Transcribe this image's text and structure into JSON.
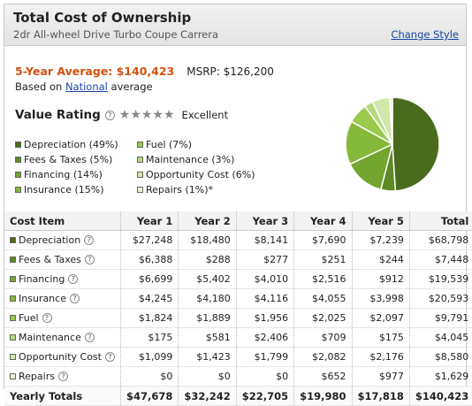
{
  "header": {
    "title": "Total Cost of Ownership",
    "subtitle": "2dr All-wheel Drive Turbo Coupe Carrera",
    "change_style": "Change Style"
  },
  "summary": {
    "avg_label": "5-Year Average: $140,423",
    "msrp": "MSRP: $126,200",
    "based_pre": "Based on",
    "based_link": "National",
    "based_post": "average"
  },
  "value_rating": {
    "label": "Value Rating",
    "help": "?",
    "stars": "★★★★★",
    "text": "Excellent"
  },
  "legend": [
    {
      "label": "Depreciation (49%)",
      "color": "#4a6a1e"
    },
    {
      "label": "Fees & Taxes (5%)",
      "color": "#5e8a26"
    },
    {
      "label": "Financing (14%)",
      "color": "#72a52e"
    },
    {
      "label": "Insurance (15%)",
      "color": "#86b83a"
    },
    {
      "label": "Fuel (7%)",
      "color": "#9acb4e"
    },
    {
      "label": "Maintenance (3%)",
      "color": "#b4da7c"
    },
    {
      "label": "Opportunity Cost (6%)",
      "color": "#cfe7a9"
    },
    {
      "label": "Repairs (1%)*",
      "color": "#e6f2d3"
    }
  ],
  "table": {
    "headers": [
      "Cost Item",
      "Year 1",
      "Year 2",
      "Year 3",
      "Year 4",
      "Year 5",
      "Total"
    ],
    "rows": [
      {
        "label": "Depreciation",
        "color": "#4a6a1e",
        "values": [
          "$27,248",
          "$18,480",
          "$8,141",
          "$7,690",
          "$7,239",
          "$68,798"
        ]
      },
      {
        "label": "Fees & Taxes",
        "color": "#5e8a26",
        "values": [
          "$6,388",
          "$288",
          "$277",
          "$251",
          "$244",
          "$7,448"
        ]
      },
      {
        "label": "Financing",
        "color": "#72a52e",
        "values": [
          "$6,699",
          "$5,402",
          "$4,010",
          "$2,516",
          "$912",
          "$19,539"
        ]
      },
      {
        "label": "Insurance",
        "color": "#86b83a",
        "values": [
          "$4,245",
          "$4,180",
          "$4,116",
          "$4,055",
          "$3,998",
          "$20,593"
        ]
      },
      {
        "label": "Fuel",
        "color": "#9acb4e",
        "values": [
          "$1,824",
          "$1,889",
          "$1,956",
          "$2,025",
          "$2,097",
          "$9,791"
        ]
      },
      {
        "label": "Maintenance",
        "color": "#b4da7c",
        "values": [
          "$175",
          "$581",
          "$2,406",
          "$709",
          "$175",
          "$4,045"
        ]
      },
      {
        "label": "Opportunity Cost",
        "color": "#cfe7a9",
        "values": [
          "$1,099",
          "$1,423",
          "$1,799",
          "$2,082",
          "$2,176",
          "$8,580"
        ]
      },
      {
        "label": "Repairs",
        "color": "#e6f2d3",
        "values": [
          "$0",
          "$0",
          "$0",
          "$652",
          "$977",
          "$1,629"
        ]
      }
    ],
    "totals": {
      "label": "Yearly Totals",
      "values": [
        "$47,678",
        "$32,242",
        "$22,705",
        "$19,980",
        "$17,818",
        "$140,423"
      ]
    }
  },
  "pie": {
    "values": [
      49,
      5,
      14,
      15,
      7,
      3,
      6,
      1
    ]
  }
}
